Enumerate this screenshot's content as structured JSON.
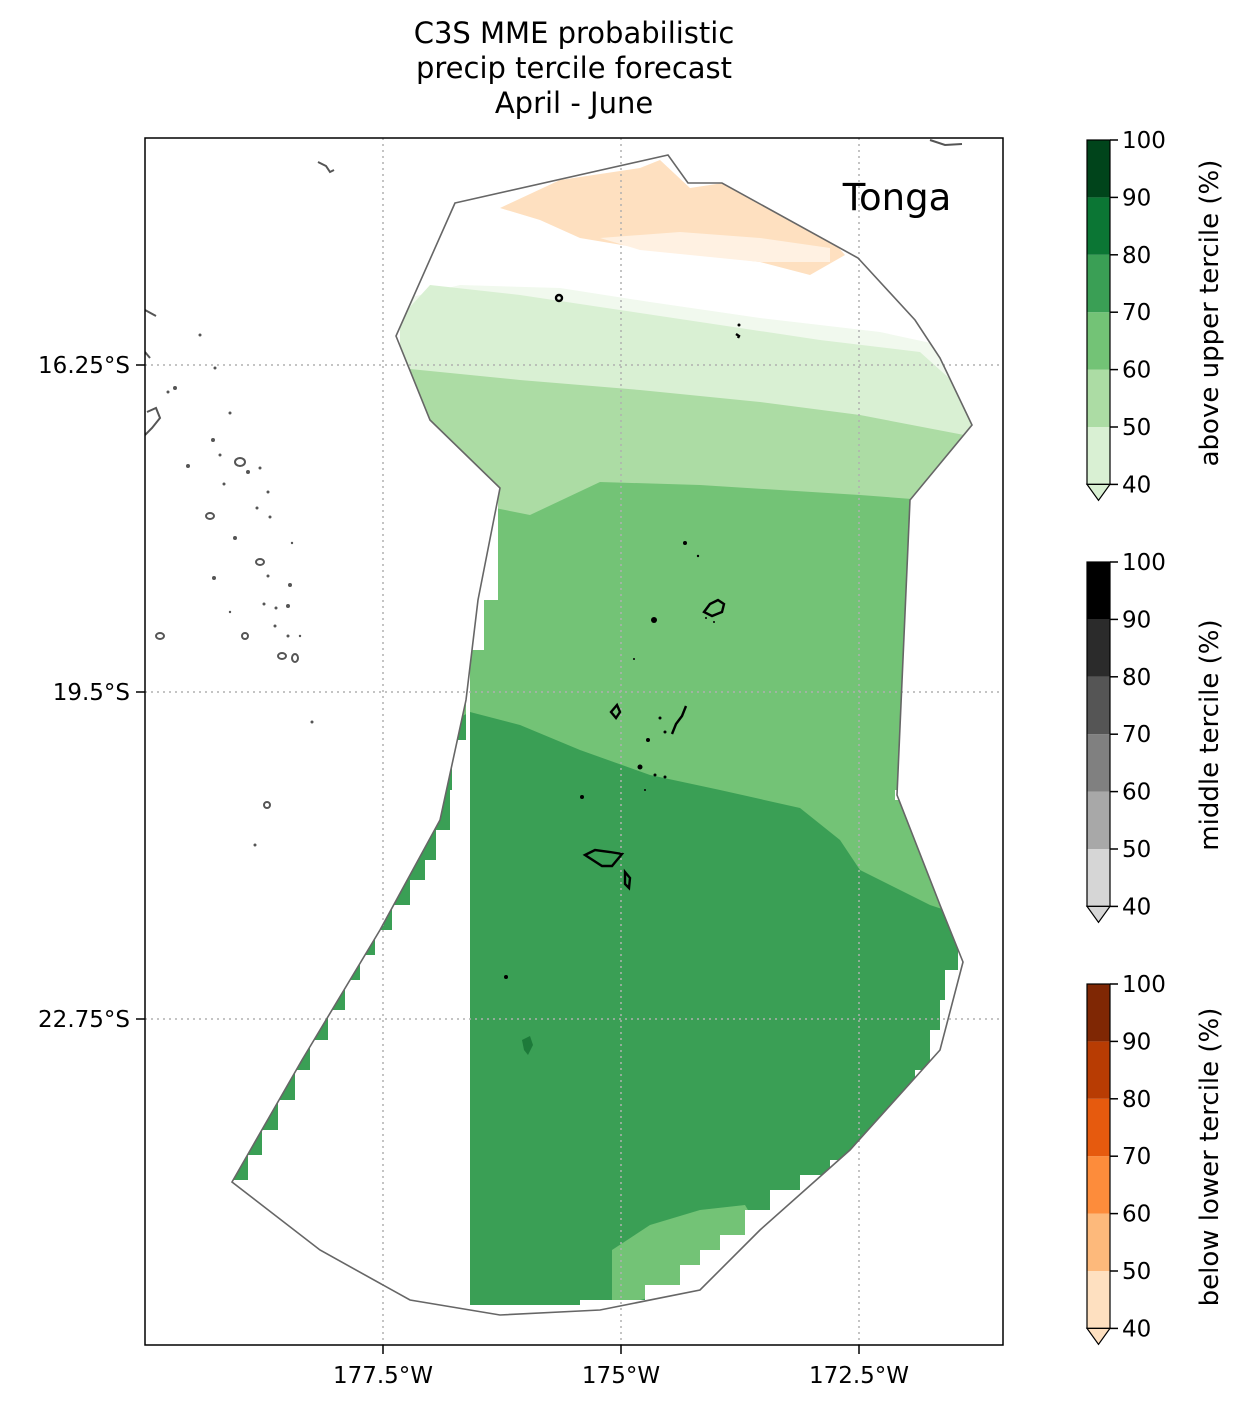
{
  "title": {
    "line1": "C3S MME probabilistic",
    "line2": "precip tercile forecast",
    "line3": "April - June"
  },
  "map": {
    "region_label": "Tonga",
    "x_ticks": [
      "177.5°W",
      "175°W",
      "172.5°W"
    ],
    "y_ticks": [
      "16.25°S",
      "19.5°S",
      "22.75°S"
    ],
    "colors": {
      "boundary": "#666666",
      "coast": "#555555",
      "islands": "#000000",
      "grid": "#b0b0b0"
    }
  },
  "colorbars": [
    {
      "label": "above upper tercile (%)",
      "ticks": [
        "100",
        "90",
        "80",
        "70",
        "60",
        "50",
        "40"
      ],
      "colors": [
        "#d9f0d3",
        "#acdca4",
        "#73c376",
        "#3a9f55",
        "#0b7634",
        "#00441b"
      ]
    },
    {
      "label": "middle tercile (%)",
      "ticks": [
        "100",
        "90",
        "80",
        "70",
        "60",
        "50",
        "40"
      ],
      "colors": [
        "#d6d6d6",
        "#a8a8a8",
        "#808080",
        "#555555",
        "#2b2b2b",
        "#000000"
      ]
    },
    {
      "label": "below lower tercile (%)",
      "ticks": [
        "100",
        "90",
        "80",
        "70",
        "60",
        "50",
        "40"
      ],
      "colors": [
        "#fee0c0",
        "#fdb97b",
        "#fd8c3b",
        "#e65a0e",
        "#b83c03",
        "#7f2704"
      ]
    }
  ]
}
